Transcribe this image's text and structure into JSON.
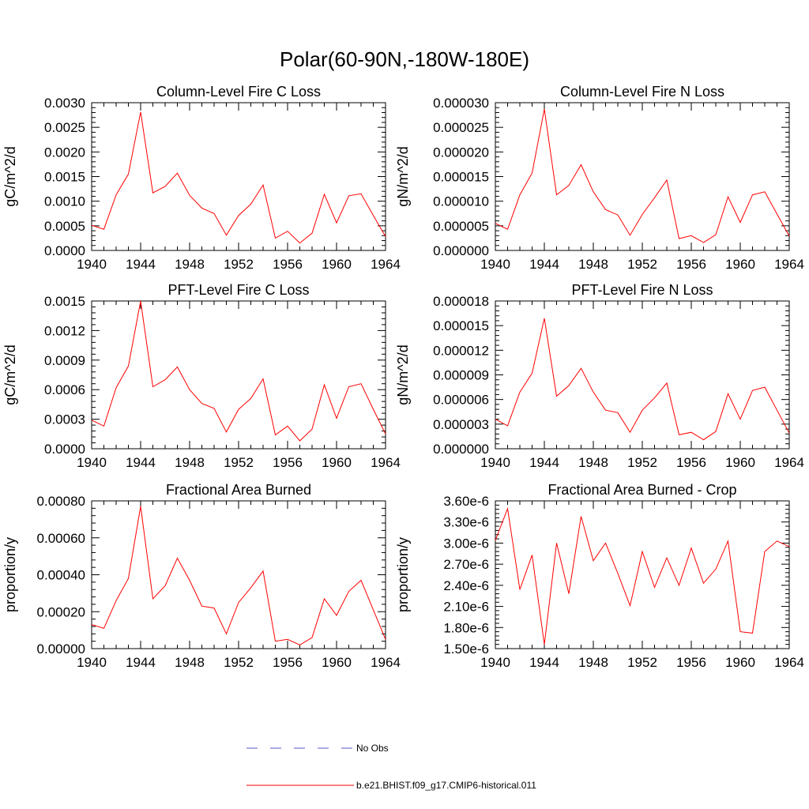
{
  "main_title": "Polar(60-90N,-180W-180E)",
  "legend": [
    {
      "label": "No Obs",
      "color": "#5555cc",
      "dash": true
    },
    {
      "label": "b.e21.BHIST.f09_g17.CMIP6-historical.011",
      "color": "#ff0000",
      "dash": false
    }
  ],
  "chart_data": [
    {
      "type": "line",
      "title": "Column-Level Fire C Loss",
      "ylabel": "gC/m^2/d",
      "xlim": [
        1940,
        1964
      ],
      "ylim": [
        0,
        0.003
      ],
      "xticks": [
        "1940",
        "1944",
        "1948",
        "1952",
        "1956",
        "1960",
        "1964"
      ],
      "yticks": [
        "0.0000",
        "0.0005",
        "0.0010",
        "0.0015",
        "0.0020",
        "0.0025",
        "0.0030"
      ],
      "x": [
        1940,
        1941,
        1942,
        1943,
        1944,
        1945,
        1946,
        1947,
        1948,
        1949,
        1950,
        1951,
        1952,
        1953,
        1954,
        1955,
        1956,
        1957,
        1958,
        1959,
        1960,
        1961,
        1962,
        1963,
        1964
      ],
      "series": [
        {
          "color": "#ff0000",
          "values": [
            0.00051,
            0.00043,
            0.00113,
            0.00155,
            0.00281,
            0.00117,
            0.0013,
            0.00157,
            0.00112,
            0.00086,
            0.00075,
            0.00031,
            0.00071,
            0.00094,
            0.00133,
            0.00025,
            0.00039,
            0.00015,
            0.00035,
            0.00114,
            0.00056,
            0.00111,
            0.00115,
            0.00071,
            0.00028
          ]
        }
      ]
    },
    {
      "type": "line",
      "title": "Column-Level Fire N Loss",
      "ylabel": "gN/m^2/d",
      "xlim": [
        1940,
        1964
      ],
      "ylim": [
        0,
        3e-05
      ],
      "xticks": [
        "1940",
        "1944",
        "1948",
        "1952",
        "1956",
        "1960",
        "1964"
      ],
      "yticks": [
        "0.000000",
        "0.000005",
        "0.000010",
        "0.000015",
        "0.000020",
        "0.000025",
        "0.000030"
      ],
      "x": [
        1940,
        1941,
        1942,
        1943,
        1944,
        1945,
        1946,
        1947,
        1948,
        1949,
        1950,
        1951,
        1952,
        1953,
        1954,
        1955,
        1956,
        1957,
        1958,
        1959,
        1960,
        1961,
        1962,
        1963,
        1964
      ],
      "series": [
        {
          "color": "#ff0000",
          "values": [
            5.5e-06,
            4.3e-06,
            1.13e-05,
            1.57e-05,
            2.87e-05,
            1.13e-05,
            1.32e-05,
            1.74e-05,
            1.19e-05,
            8.3e-06,
            7.2e-06,
            3.1e-06,
            7.3e-06,
            1.07e-05,
            1.43e-05,
            2.4e-06,
            3e-06,
            1.6e-06,
            3.2e-06,
            1.09e-05,
            5.7e-06,
            1.13e-05,
            1.19e-05,
            7.4e-06,
            2.9e-06
          ]
        }
      ]
    },
    {
      "type": "line",
      "title": "PFT-Level Fire C Loss",
      "ylabel": "gC/m^2/d",
      "xlim": [
        1940,
        1964
      ],
      "ylim": [
        0,
        0.0015
      ],
      "xticks": [
        "1940",
        "1944",
        "1948",
        "1952",
        "1956",
        "1960",
        "1964"
      ],
      "yticks": [
        "0.0000",
        "0.0003",
        "0.0006",
        "0.0009",
        "0.0012",
        "0.0015"
      ],
      "x": [
        1940,
        1941,
        1942,
        1943,
        1944,
        1945,
        1946,
        1947,
        1948,
        1949,
        1950,
        1951,
        1952,
        1953,
        1954,
        1955,
        1956,
        1957,
        1958,
        1959,
        1960,
        1961,
        1962,
        1963,
        1964
      ],
      "series": [
        {
          "color": "#ff0000",
          "values": [
            0.00029,
            0.00023,
            0.00062,
            0.00084,
            0.0015,
            0.00063,
            0.0007,
            0.00083,
            0.0006,
            0.00046,
            0.00041,
            0.00017,
            0.0004,
            0.00051,
            0.00071,
            0.00014,
            0.00023,
            8e-05,
            0.0002,
            0.00065,
            0.00031,
            0.00063,
            0.00066,
            0.0004,
            0.00015
          ]
        }
      ]
    },
    {
      "type": "line",
      "title": "PFT-Level Fire N Loss",
      "ylabel": "gN/m^2/d",
      "xlim": [
        1940,
        1964
      ],
      "ylim": [
        0,
        1.8e-05
      ],
      "xticks": [
        "1940",
        "1944",
        "1948",
        "1952",
        "1956",
        "1960",
        "1964"
      ],
      "yticks": [
        "0.000000",
        "0.000003",
        "0.000006",
        "0.000009",
        "0.000012",
        "0.000015",
        "0.000018"
      ],
      "x": [
        1940,
        1941,
        1942,
        1943,
        1944,
        1945,
        1946,
        1947,
        1948,
        1949,
        1950,
        1951,
        1952,
        1953,
        1954,
        1955,
        1956,
        1957,
        1958,
        1959,
        1960,
        1961,
        1962,
        1963,
        1964
      ],
      "series": [
        {
          "color": "#ff0000",
          "values": [
            3.6e-06,
            2.8e-06,
            6.9e-06,
            9.2e-06,
            1.59e-05,
            6.4e-06,
            7.7e-06,
            9.8e-06,
            6.9e-06,
            4.7e-06,
            4.4e-06,
            2e-06,
            4.7e-06,
            6.2e-06,
            8e-06,
            1.7e-06,
            2e-06,
            1.1e-06,
            2.1e-06,
            6.7e-06,
            3.6e-06,
            7.1e-06,
            7.5e-06,
            4.7e-06,
            1.9e-06
          ]
        }
      ]
    },
    {
      "type": "line",
      "title": "Fractional Area Burned",
      "ylabel": "proportion/y",
      "xlim": [
        1940,
        1964
      ],
      "ylim": [
        0,
        0.0008
      ],
      "xticks": [
        "1940",
        "1944",
        "1948",
        "1952",
        "1956",
        "1960",
        "1964"
      ],
      "yticks": [
        "0.00000",
        "0.00020",
        "0.00040",
        "0.00060",
        "0.00080"
      ],
      "x": [
        1940,
        1941,
        1942,
        1943,
        1944,
        1945,
        1946,
        1947,
        1948,
        1949,
        1950,
        1951,
        1952,
        1953,
        1954,
        1955,
        1956,
        1957,
        1958,
        1959,
        1960,
        1961,
        1962,
        1963,
        1964
      ],
      "series": [
        {
          "color": "#ff0000",
          "values": [
            0.00013,
            0.00011,
            0.00026,
            0.00038,
            0.00077,
            0.00027,
            0.00034,
            0.00049,
            0.00037,
            0.00023,
            0.00022,
            8e-05,
            0.00025,
            0.00033,
            0.00042,
            4e-05,
            5e-05,
            2e-05,
            6e-05,
            0.00027,
            0.00018,
            0.00031,
            0.00037,
            0.00021,
            5e-05
          ]
        }
      ]
    },
    {
      "type": "line",
      "title": "Fractional Area Burned - Crop",
      "ylabel": "proportion/y",
      "xlim": [
        1940,
        1964
      ],
      "ylim": [
        1.5e-06,
        3.6e-06
      ],
      "xticks": [
        "1940",
        "1944",
        "1948",
        "1952",
        "1956",
        "1960",
        "1964"
      ],
      "yticks": [
        "1.50e-6",
        "1.80e-6",
        "2.10e-6",
        "2.40e-6",
        "2.70e-6",
        "3.00e-6",
        "3.30e-6",
        "3.60e-6"
      ],
      "x": [
        1940,
        1941,
        1942,
        1943,
        1944,
        1945,
        1946,
        1947,
        1948,
        1949,
        1950,
        1951,
        1952,
        1953,
        1954,
        1955,
        1956,
        1957,
        1958,
        1959,
        1960,
        1961,
        1962,
        1963,
        1964
      ],
      "series": [
        {
          "color": "#ff0000",
          "values": [
            3.04e-06,
            3.49e-06,
            2.34e-06,
            2.83e-06,
            1.56e-06,
            3e-06,
            2.28e-06,
            3.38e-06,
            2.75e-06,
            3e-06,
            2.57e-06,
            2.11e-06,
            2.88e-06,
            2.37e-06,
            2.79e-06,
            2.4e-06,
            2.93e-06,
            2.43e-06,
            2.63e-06,
            3.03e-06,
            1.74e-06,
            1.72e-06,
            2.88e-06,
            3.03e-06,
            2.95e-06
          ]
        }
      ]
    }
  ]
}
